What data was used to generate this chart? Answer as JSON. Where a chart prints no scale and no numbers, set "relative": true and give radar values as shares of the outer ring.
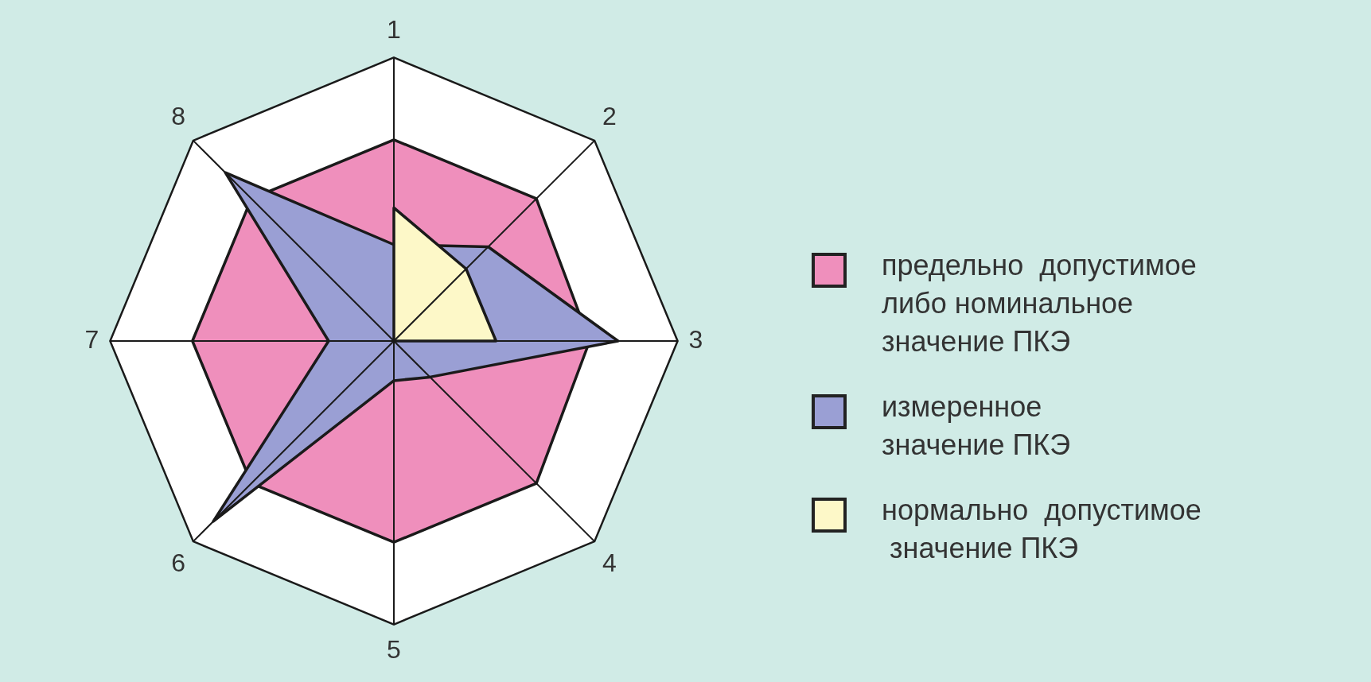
{
  "chart_data": {
    "type": "radar",
    "relative": true,
    "categories": [
      "1",
      "2",
      "3",
      "4",
      "5",
      "6",
      "7",
      "8"
    ],
    "series": [
      {
        "name": "предельно  допустимое\nлибо номинальное\nзначение ПКЭ",
        "color": "#ef8fbc",
        "values": [
          0.71,
          0.71,
          0.69,
          0.71,
          0.71,
          0.71,
          0.71,
          0.71
        ]
      },
      {
        "name": "измеренное\nзначение ПКЭ",
        "color": "#9a9fd4",
        "values": [
          0.34,
          0.47,
          0.79,
          0.18,
          0.14,
          0.9,
          0.23,
          0.84
        ]
      },
      {
        "name": "нормально  допустимое\n значение ПКЭ",
        "color": "#fdf8c8",
        "values": [
          0.47,
          0.36,
          0.36,
          0,
          0,
          0,
          0,
          0
        ]
      }
    ],
    "legend": "right",
    "marker": "none"
  }
}
